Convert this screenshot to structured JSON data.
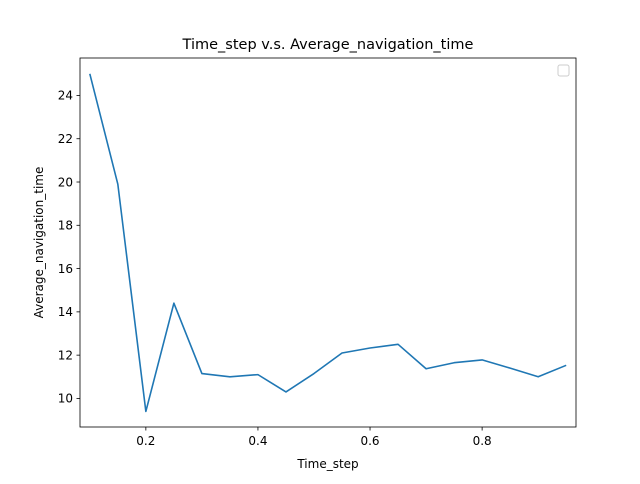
{
  "chart_data": {
    "type": "line",
    "title": "Time_step v.s. Average_navigation_time",
    "xlabel": "Time_step",
    "ylabel": "Average_navigation_time",
    "xlim": [
      0.0825,
      0.9675
    ],
    "ylim": [
      8.68,
      25.73
    ],
    "xticks": [
      0.2,
      0.4,
      0.6,
      0.8
    ],
    "xtick_labels": [
      "0.2",
      "0.4",
      "0.6",
      "0.8"
    ],
    "yticks": [
      10,
      12,
      14,
      16,
      18,
      20,
      22,
      24
    ],
    "ytick_labels": [
      "10",
      "12",
      "14",
      "16",
      "18",
      "20",
      "22",
      "24"
    ],
    "grid": false,
    "legend": "top-right (empty)",
    "series": [
      {
        "color": "#1f77b4",
        "x": [
          0.1,
          0.15,
          0.2,
          0.25,
          0.3,
          0.35,
          0.4,
          0.45,
          0.5,
          0.55,
          0.6,
          0.65,
          0.7,
          0.75,
          0.8,
          0.85,
          0.9,
          0.95
        ],
        "y": [
          25.0,
          19.9,
          9.4,
          14.4,
          11.15,
          11.0,
          11.1,
          10.3,
          11.15,
          12.1,
          12.33,
          12.5,
          11.37,
          11.65,
          11.78,
          11.4,
          11.0,
          11.53
        ]
      }
    ]
  }
}
